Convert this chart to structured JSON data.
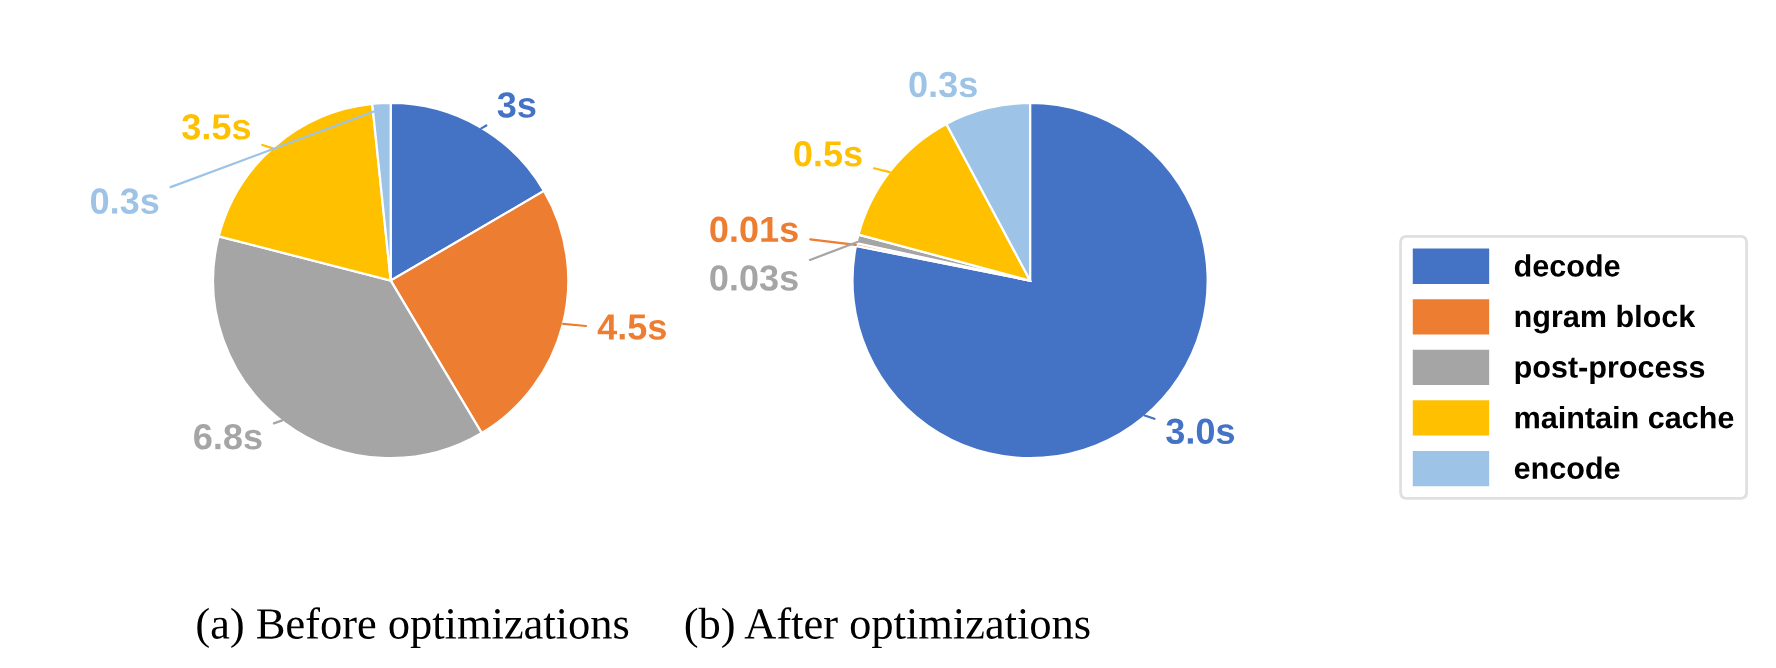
{
  "chart_data": [
    {
      "type": "pie",
      "xlabel": "(a) Before optimizations",
      "categories": [
        "decode",
        "ngram block",
        "post-process",
        "maintain cache",
        "encode"
      ],
      "values": [
        3,
        4.5,
        6.8,
        3.5,
        0.3
      ],
      "colors": [
        "#4472c4",
        "#ed7d31",
        "#a5a5a5",
        "#ffc000",
        "#9dc3e6"
      ],
      "value_labels": [
        "3s",
        "4.5s",
        "6.8s",
        "3.5s",
        "0.3s"
      ],
      "legend": "right"
    },
    {
      "type": "pie",
      "xlabel": "(b) After optimizations",
      "categories": [
        null,
        null,
        null,
        null,
        null
      ],
      "values": [
        3.0,
        0.01,
        0.03,
        0.5,
        0.3
      ],
      "colors": [
        "#4472c4",
        "#ed7d31",
        "#a5a5a5",
        "#ffc000",
        "#9dc3e6"
      ],
      "value_labels": [
        "3.0s",
        "0.01s",
        "0.03s",
        "0.5s",
        "0.3s"
      ]
    }
  ]
}
